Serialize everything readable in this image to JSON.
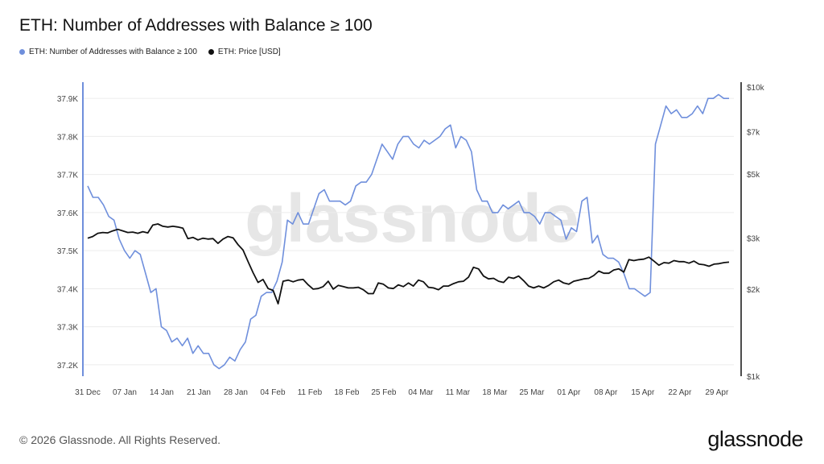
{
  "title": "ETH: Number of Addresses with Balance ≥ 100",
  "legend": [
    {
      "label": "ETH: Number of Addresses with Balance ≥ 100",
      "color": "#6f8fdc"
    },
    {
      "label": "ETH: Price [USD]",
      "color": "#111111"
    }
  ],
  "watermark": "glassnode",
  "footer": "© 2026 Glassnode. All Rights Reserved.",
  "brand": "glassnode",
  "chart_data": {
    "type": "line",
    "title": "ETH: Number of Addresses with Balance ≥ 100",
    "grid": true,
    "legend_position": "top-left",
    "x_ticks": [
      "31 Dec",
      "07 Jan",
      "14 Jan",
      "21 Jan",
      "28 Jan",
      "04 Feb",
      "11 Feb",
      "18 Feb",
      "25 Feb",
      "04 Mar",
      "11 Mar",
      "18 Mar",
      "25 Mar",
      "01 Apr",
      "08 Apr",
      "15 Apr",
      "22 Apr",
      "29 Apr"
    ],
    "x_range": [
      "31 Dec",
      "05 May"
    ],
    "y_left": {
      "range": [
        37.17,
        37.93
      ],
      "ticks": [
        37.2,
        37.3,
        37.4,
        37.5,
        37.6,
        37.7,
        37.8,
        37.9
      ],
      "tick_labels": [
        "37.2K",
        "37.3K",
        "37.4K",
        "37.5K",
        "37.6K",
        "37.7K",
        "37.8K",
        "37.9K"
      ],
      "unit": "thousand addresses"
    },
    "y_right": {
      "scale": "log",
      "range": [
        1000,
        10000
      ],
      "ticks": [
        1000,
        2000,
        3000,
        5000,
        7000,
        10000
      ],
      "tick_labels": [
        "$1k",
        "$2k",
        "$3k",
        "$5k",
        "$7k",
        "$10k"
      ]
    },
    "series": [
      {
        "name": "ETH: Number of Addresses with Balance ≥ 100",
        "axis": "left",
        "color": "#6f8fdc",
        "values": [
          37.67,
          37.64,
          37.64,
          37.62,
          37.59,
          37.58,
          37.53,
          37.5,
          37.48,
          37.5,
          37.49,
          37.44,
          37.39,
          37.4,
          37.3,
          37.29,
          37.26,
          37.27,
          37.25,
          37.27,
          37.23,
          37.25,
          37.23,
          37.23,
          37.2,
          37.19,
          37.2,
          37.22,
          37.21,
          37.24,
          37.26,
          37.32,
          37.33,
          37.38,
          37.39,
          37.39,
          37.42,
          37.47,
          37.58,
          37.57,
          37.6,
          37.57,
          37.57,
          37.61,
          37.65,
          37.66,
          37.63,
          37.63,
          37.63,
          37.62,
          37.63,
          37.67,
          37.68,
          37.68,
          37.7,
          37.74,
          37.78,
          37.76,
          37.74,
          37.78,
          37.8,
          37.8,
          37.78,
          37.77,
          37.79,
          37.78,
          37.79,
          37.8,
          37.82,
          37.83,
          37.77,
          37.8,
          37.79,
          37.76,
          37.66,
          37.63,
          37.63,
          37.6,
          37.6,
          37.62,
          37.61,
          37.62,
          37.63,
          37.6,
          37.6,
          37.59,
          37.57,
          37.6,
          37.6,
          37.59,
          37.58,
          37.53,
          37.56,
          37.55,
          37.63,
          37.64,
          37.52,
          37.54,
          37.49,
          37.48,
          37.48,
          37.47,
          37.44,
          37.4,
          37.4,
          37.39,
          37.38,
          37.39,
          37.78,
          37.83,
          37.88,
          37.86,
          37.87,
          37.85,
          37.85,
          37.86,
          37.88,
          37.86,
          37.9,
          37.9,
          37.91,
          37.9,
          37.9
        ]
      },
      {
        "name": "ETH: Price [USD]",
        "axis": "right",
        "color": "#111111",
        "values": [
          3000,
          3040,
          3120,
          3140,
          3130,
          3180,
          3220,
          3180,
          3140,
          3150,
          3120,
          3160,
          3130,
          3330,
          3360,
          3300,
          3280,
          3300,
          3280,
          3250,
          2990,
          3020,
          2960,
          3000,
          2980,
          2990,
          2880,
          2980,
          3040,
          3010,
          2850,
          2730,
          2490,
          2280,
          2110,
          2160,
          2010,
          1980,
          1780,
          2130,
          2150,
          2120,
          2150,
          2160,
          2070,
          2000,
          2010,
          2040,
          2130,
          2000,
          2060,
          2040,
          2020,
          2020,
          2030,
          1990,
          1930,
          1930,
          2100,
          2080,
          2020,
          2010,
          2070,
          2040,
          2100,
          2050,
          2150,
          2120,
          2030,
          2020,
          1990,
          2050,
          2050,
          2090,
          2120,
          2130,
          2200,
          2380,
          2350,
          2220,
          2170,
          2180,
          2130,
          2110,
          2200,
          2180,
          2220,
          2140,
          2050,
          2020,
          2050,
          2020,
          2060,
          2120,
          2150,
          2100,
          2080,
          2130,
          2150,
          2170,
          2180,
          2230,
          2310,
          2270,
          2270,
          2330,
          2350,
          2290,
          2530,
          2510,
          2530,
          2540,
          2580,
          2500,
          2420,
          2470,
          2460,
          2510,
          2490,
          2490,
          2460,
          2500,
          2440,
          2430,
          2400,
          2440,
          2450,
          2470,
          2480
        ]
      }
    ]
  }
}
